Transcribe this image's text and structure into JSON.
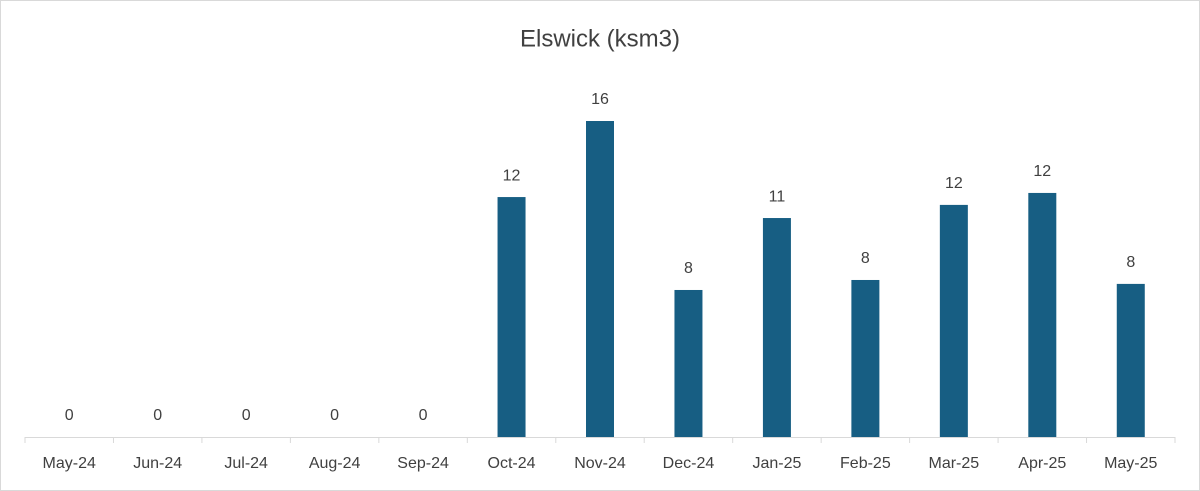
{
  "chart_data": {
    "type": "bar",
    "title": "Elswick (ksm3)",
    "categories": [
      "May-24",
      "Jun-24",
      "Jul-24",
      "Aug-24",
      "Sep-24",
      "Oct-24",
      "Nov-24",
      "Dec-24",
      "Jan-25",
      "Feb-25",
      "Mar-25",
      "Apr-25",
      "May-25"
    ],
    "values": [
      0,
      0,
      0,
      0,
      0,
      12.24,
      16.12,
      7.5,
      11.17,
      8.01,
      11.84,
      12.45,
      7.81
    ],
    "value_labels": [
      "0",
      "0",
      "0",
      "0",
      "0",
      "12",
      "16",
      "8",
      "11",
      "8",
      "12",
      "12",
      "8"
    ],
    "color": "#175e83"
  }
}
